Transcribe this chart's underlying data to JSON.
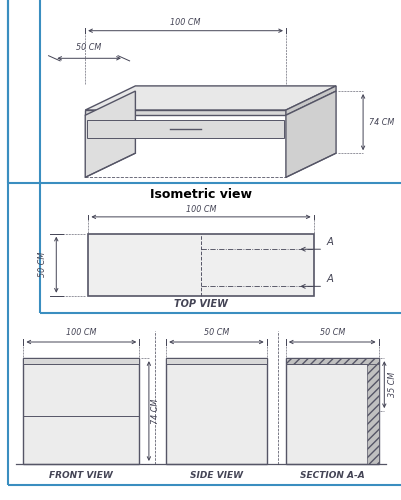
{
  "bg_color": "#ffffff",
  "panel_bg": "#ffffff",
  "border_color": "#3a8ec0",
  "border_lw": 1.5,
  "sketch_color": "#555566",
  "dim_color": "#444455",
  "title_isometric": "Isometric view",
  "label_top": "TOP VIEW",
  "label_front": "FRONT VIEW",
  "label_side": "SIDE VIEW",
  "label_section": "SECTION A-A",
  "dim_50cm_iso_depth": "50 CM",
  "dim_100cm_iso_width": "100 CM",
  "dim_74cm_iso": "74 CM",
  "dim_100cm_tv": "100 CM",
  "dim_50cm_tv": "50 CM",
  "dim_100cm_fv": "100 CM",
  "dim_74cm_fv": "74 CM",
  "dim_50cm_sv": "50 CM",
  "dim_50cm_sec": "50 CM",
  "dim_35cm": "35 CM",
  "font_size_title": 9,
  "font_size_label": 6.5,
  "font_size_dim": 5.8
}
